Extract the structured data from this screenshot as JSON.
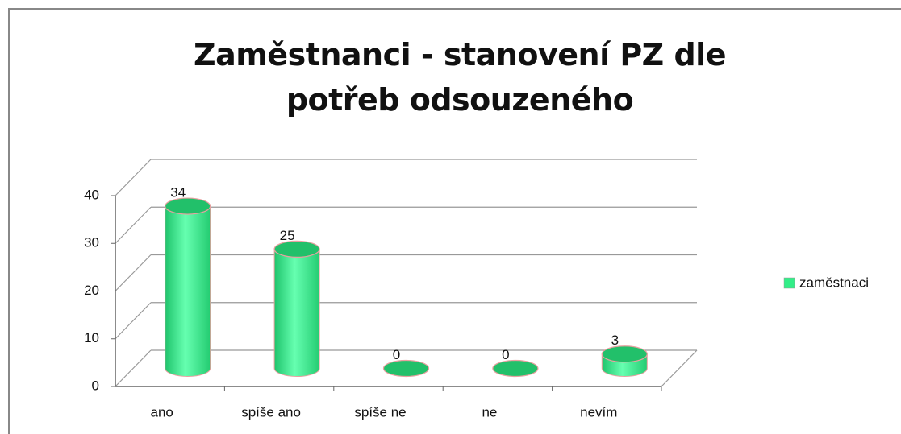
{
  "chart_data": {
    "type": "bar",
    "title": "Zaměstnanci - stanovení PZ dle potřeb odsouzeného",
    "categories": [
      "ano",
      "spíše ano",
      "spíše ne",
      "ne",
      "nevím"
    ],
    "series": [
      {
        "name": "zaměstnaci",
        "color": "#33ee88",
        "values": [
          34,
          25,
          0,
          0,
          3
        ]
      }
    ],
    "ylim": [
      0,
      40
    ],
    "yticks": [
      0,
      10,
      20,
      30,
      40
    ],
    "grid": true,
    "legend": "right"
  }
}
